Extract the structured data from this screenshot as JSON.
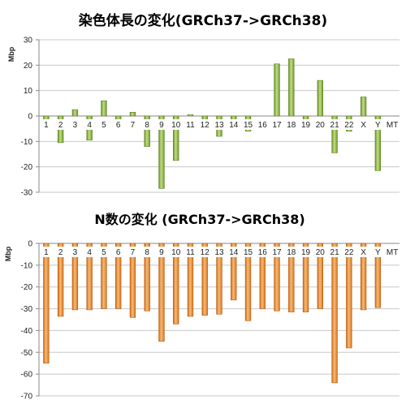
{
  "chart_data": [
    {
      "type": "bar",
      "title": "染色体長の変化(GRCh37->GRCh38)",
      "ylabel": "Mbp",
      "ylim": [
        -30,
        30
      ],
      "yticks": [
        30,
        20,
        10,
        0,
        -10,
        -20,
        -30
      ],
      "categories": [
        "1",
        "2",
        "3",
        "4",
        "5",
        "6",
        "7",
        "8",
        "9",
        "10",
        "11",
        "12",
        "13",
        "14",
        "15",
        "16",
        "17",
        "18",
        "19",
        "20",
        "21",
        "22",
        "X",
        "Y",
        "MT"
      ],
      "values": [
        -3,
        -10.5,
        2.5,
        -9.5,
        6,
        -3,
        1.5,
        -12,
        -28.5,
        -17.5,
        0.5,
        -5,
        -8,
        -3,
        -6,
        0,
        20.5,
        22.5,
        -5,
        14,
        -14.5,
        -6,
        7.5,
        -21.5,
        0
      ],
      "grid": true,
      "bar_color": "#7fa437",
      "bar_highlight": "#c3df84"
    },
    {
      "type": "bar",
      "title": "N数の変化 (GRCh37->GRCh38)",
      "ylabel": "Mbp",
      "ylim": [
        -70,
        0
      ],
      "yticks": [
        0,
        -10,
        -20,
        -30,
        -40,
        -50,
        -60,
        -70
      ],
      "categories": [
        "1",
        "2",
        "3",
        "4",
        "5",
        "6",
        "7",
        "8",
        "9",
        "10",
        "11",
        "12",
        "13",
        "14",
        "15",
        "16",
        "17",
        "18",
        "19",
        "20",
        "21",
        "22",
        "X",
        "Y",
        "MT"
      ],
      "values": [
        -55,
        -33.5,
        -30.5,
        -30.5,
        -30,
        -30,
        -34,
        -31,
        -45,
        -37,
        -33.5,
        -33,
        -32.5,
        -26,
        -35.5,
        -30,
        -31,
        -31.5,
        -31.5,
        -30,
        -64,
        -48,
        -30.5,
        -29.5,
        0
      ],
      "grid": true,
      "bar_color": "#e07b17",
      "bar_highlight": "#f6bb7a"
    }
  ]
}
